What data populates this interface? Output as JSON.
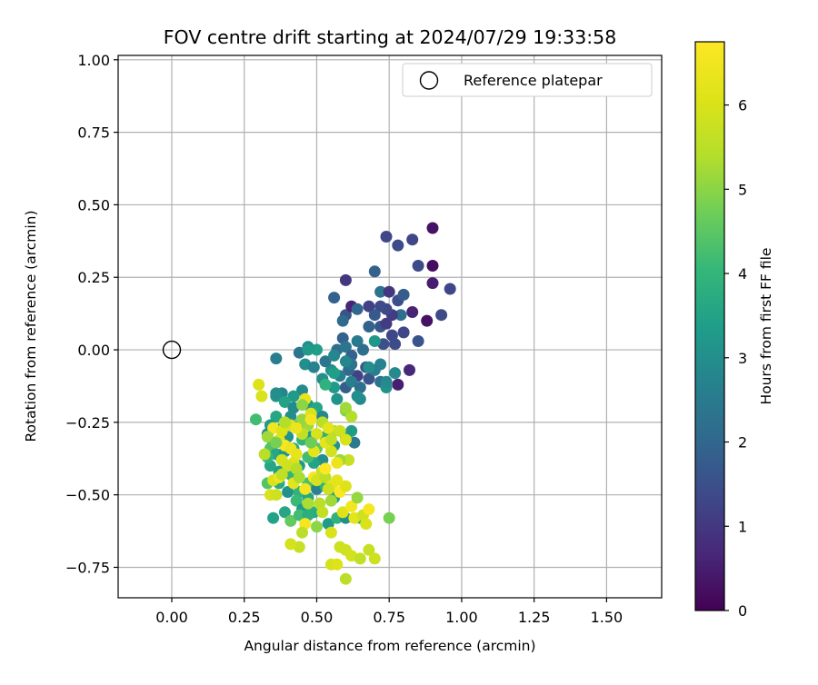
{
  "chart_data": {
    "type": "scatter",
    "title": "FOV centre drift starting at 2024/07/29 19:33:58",
    "xlabel": "Angular distance from reference (arcmin)",
    "ylabel": "Rotation from reference (arcmin)",
    "xlim": [
      -0.185,
      1.69
    ],
    "ylim": [
      -0.855,
      1.015
    ],
    "xticks": [
      "0.00",
      "0.25",
      "0.50",
      "0.75",
      "1.00",
      "1.25",
      "1.50"
    ],
    "yticks": [
      "−0.75",
      "−0.50",
      "−0.25",
      "0.00",
      "0.25",
      "0.50",
      "0.75",
      "1.00"
    ],
    "grid": true,
    "legend": {
      "placement": "top-right",
      "entries": [
        "Reference platepar"
      ]
    },
    "reference_point": {
      "x": 0.0,
      "y": 0.0
    },
    "colorbar": {
      "label": "Hours from first FF file",
      "colormap": "viridis",
      "range": [
        0,
        6.75
      ],
      "ticks": [
        "0",
        "1",
        "2",
        "3",
        "4",
        "5",
        "6"
      ]
    },
    "series": [
      {
        "points": [
          [
            0.9,
            0.42,
            0.3
          ],
          [
            0.9,
            0.29,
            0.2
          ],
          [
            0.9,
            0.23,
            0.5
          ],
          [
            0.96,
            0.21,
            1.3
          ],
          [
            0.88,
            0.1,
            0.3
          ],
          [
            0.93,
            0.12,
            1.4
          ],
          [
            0.85,
            0.29,
            1.4
          ],
          [
            0.83,
            0.38,
            1.3
          ],
          [
            0.74,
            0.39,
            1.3
          ],
          [
            0.78,
            0.36,
            1.4
          ],
          [
            0.83,
            0.13,
            0.6
          ],
          [
            0.82,
            -0.07,
            0.7
          ],
          [
            0.78,
            -0.12,
            0.5
          ],
          [
            0.85,
            0.03,
            1.6
          ],
          [
            0.6,
            0.24,
            1.0
          ],
          [
            0.56,
            0.18,
            1.9
          ],
          [
            0.6,
            0.12,
            1.6
          ],
          [
            0.62,
            0.15,
            0.6
          ],
          [
            0.64,
            0.14,
            2.0
          ],
          [
            0.68,
            0.15,
            1.2
          ],
          [
            0.7,
            0.27,
            1.9
          ],
          [
            0.72,
            0.2,
            2.3
          ],
          [
            0.75,
            0.2,
            1.0
          ],
          [
            0.78,
            0.17,
            1.5
          ],
          [
            0.8,
            0.19,
            1.8
          ],
          [
            0.79,
            0.12,
            2.2
          ],
          [
            0.76,
            0.12,
            1.1
          ],
          [
            0.74,
            0.14,
            1.3
          ],
          [
            0.72,
            0.15,
            1.4
          ],
          [
            0.7,
            0.12,
            1.7
          ],
          [
            0.68,
            0.08,
            1.9
          ],
          [
            0.72,
            0.08,
            1.6
          ],
          [
            0.74,
            0.09,
            1.1
          ],
          [
            0.76,
            0.05,
            1.3
          ],
          [
            0.73,
            0.02,
            1.5
          ],
          [
            0.77,
            0.02,
            1.4
          ],
          [
            0.8,
            0.06,
            1.3
          ],
          [
            0.59,
            0.1,
            2.1
          ],
          [
            0.57,
            0.0,
            2.2
          ],
          [
            0.59,
            0.04,
            1.9
          ],
          [
            0.6,
            0.01,
            2.4
          ],
          [
            0.62,
            -0.02,
            1.9
          ],
          [
            0.64,
            0.03,
            2.5
          ],
          [
            0.66,
            0.0,
            2.2
          ],
          [
            0.67,
            -0.06,
            1.7
          ],
          [
            0.64,
            -0.09,
            1.2
          ],
          [
            0.61,
            -0.07,
            2.1
          ],
          [
            0.58,
            -0.09,
            2.6
          ],
          [
            0.55,
            -0.07,
            3.0
          ],
          [
            0.53,
            -0.04,
            2.4
          ],
          [
            0.56,
            -0.02,
            2.8
          ],
          [
            0.5,
            0.0,
            3.4
          ],
          [
            0.47,
            0.01,
            2.9
          ],
          [
            0.44,
            -0.01,
            2.4
          ],
          [
            0.36,
            -0.03,
            2.6
          ],
          [
            0.46,
            -0.05,
            3.0
          ],
          [
            0.49,
            -0.06,
            2.7
          ],
          [
            0.52,
            -0.1,
            3.0
          ],
          [
            0.6,
            -0.13,
            1.8
          ],
          [
            0.62,
            -0.11,
            2.6
          ],
          [
            0.65,
            -0.13,
            2.2
          ],
          [
            0.65,
            -0.17,
            2.9
          ],
          [
            0.68,
            -0.1,
            1.6
          ],
          [
            0.7,
            -0.07,
            2.6
          ],
          [
            0.72,
            -0.11,
            2.3
          ],
          [
            0.74,
            -0.13,
            3.1
          ],
          [
            0.77,
            -0.08,
            2.9
          ],
          [
            0.62,
            -0.05,
            2.3
          ],
          [
            0.56,
            -0.13,
            3.3
          ],
          [
            0.57,
            -0.17,
            3.1
          ],
          [
            0.53,
            -0.12,
            3.9
          ],
          [
            0.45,
            -0.14,
            2.9
          ],
          [
            0.42,
            -0.16,
            3.3
          ],
          [
            0.38,
            -0.15,
            2.8
          ],
          [
            0.36,
            -0.16,
            3.1
          ],
          [
            0.39,
            -0.18,
            3.5
          ],
          [
            0.42,
            -0.2,
            2.9
          ],
          [
            0.47,
            -0.19,
            3.2
          ],
          [
            0.5,
            -0.2,
            3.6
          ],
          [
            0.52,
            -0.23,
            2.8
          ],
          [
            0.46,
            -0.25,
            3.9
          ],
          [
            0.44,
            -0.26,
            3.5
          ],
          [
            0.41,
            -0.23,
            3.0
          ],
          [
            0.36,
            -0.23,
            3.6
          ],
          [
            0.34,
            -0.26,
            3.3
          ],
          [
            0.29,
            -0.24,
            4.2
          ],
          [
            0.38,
            -0.27,
            3.9
          ],
          [
            0.33,
            -0.29,
            2.9
          ],
          [
            0.35,
            -0.32,
            3.5
          ],
          [
            0.34,
            -0.34,
            4.4
          ],
          [
            0.36,
            -0.36,
            3.6
          ],
          [
            0.39,
            -0.35,
            3.2
          ],
          [
            0.42,
            -0.34,
            3.7
          ],
          [
            0.4,
            -0.3,
            3.1
          ],
          [
            0.45,
            -0.31,
            4.0
          ],
          [
            0.48,
            -0.3,
            3.4
          ],
          [
            0.5,
            -0.34,
            4.5
          ],
          [
            0.53,
            -0.3,
            3.8
          ],
          [
            0.56,
            -0.33,
            3.1
          ],
          [
            0.6,
            -0.3,
            3.7
          ],
          [
            0.62,
            -0.28,
            3.3
          ],
          [
            0.63,
            -0.32,
            2.5
          ],
          [
            0.58,
            -0.38,
            3.8
          ],
          [
            0.52,
            -0.38,
            3.0
          ],
          [
            0.49,
            -0.39,
            3.5
          ],
          [
            0.47,
            -0.37,
            4.2
          ],
          [
            0.44,
            -0.4,
            3.3
          ],
          [
            0.41,
            -0.43,
            4.0
          ],
          [
            0.37,
            -0.42,
            3.4
          ],
          [
            0.34,
            -0.4,
            3.6
          ],
          [
            0.33,
            -0.37,
            4.0
          ],
          [
            0.33,
            -0.46,
            4.4
          ],
          [
            0.37,
            -0.46,
            3.7
          ],
          [
            0.4,
            -0.49,
            3.1
          ],
          [
            0.44,
            -0.49,
            3.9
          ],
          [
            0.47,
            -0.46,
            4.3
          ],
          [
            0.5,
            -0.48,
            2.7
          ],
          [
            0.53,
            -0.47,
            3.8
          ],
          [
            0.56,
            -0.51,
            3.3
          ],
          [
            0.47,
            -0.51,
            3.6
          ],
          [
            0.43,
            -0.52,
            4.1
          ],
          [
            0.45,
            -0.55,
            3.3
          ],
          [
            0.49,
            -0.56,
            3.7
          ],
          [
            0.51,
            -0.53,
            4.6
          ],
          [
            0.39,
            -0.56,
            3.6
          ],
          [
            0.35,
            -0.58,
            3.5
          ],
          [
            0.41,
            -0.59,
            4.6
          ],
          [
            0.44,
            -0.57,
            4.2
          ],
          [
            0.47,
            -0.57,
            3.8
          ],
          [
            0.54,
            -0.6,
            3.3
          ],
          [
            0.57,
            -0.58,
            3.9
          ],
          [
            0.65,
            -0.58,
            3.8
          ],
          [
            0.6,
            -0.58,
            3.0
          ],
          [
            0.68,
            -0.06,
            3.0
          ],
          [
            0.72,
            -0.05,
            2.7
          ],
          [
            0.6,
            -0.04,
            2.8
          ],
          [
            0.7,
            0.03,
            3.2
          ],
          [
            0.64,
            -0.16,
            3.0
          ],
          [
            0.47,
            0.0,
            3.3
          ],
          [
            0.36,
            -0.15,
            3.0
          ],
          [
            0.56,
            -0.08,
            3.4
          ],
          [
            0.74,
            -0.11,
            2.9
          ],
          [
            0.3,
            -0.12,
            6.1
          ],
          [
            0.31,
            -0.16,
            6.0
          ],
          [
            0.35,
            -0.27,
            6.5
          ],
          [
            0.37,
            -0.31,
            6.2
          ],
          [
            0.39,
            -0.33,
            6.6
          ],
          [
            0.41,
            -0.34,
            6.4
          ],
          [
            0.43,
            -0.36,
            6.3
          ],
          [
            0.42,
            -0.39,
            6.1
          ],
          [
            0.35,
            -0.45,
            6.0
          ],
          [
            0.37,
            -0.44,
            6.4
          ],
          [
            0.42,
            -0.46,
            6.2
          ],
          [
            0.46,
            -0.48,
            6.5
          ],
          [
            0.49,
            -0.44,
            6.6
          ],
          [
            0.5,
            -0.45,
            5.9
          ],
          [
            0.52,
            -0.42,
            5.8
          ],
          [
            0.53,
            -0.44,
            5.5
          ],
          [
            0.55,
            -0.47,
            6.3
          ],
          [
            0.58,
            -0.49,
            6.7
          ],
          [
            0.6,
            -0.47,
            6.1
          ],
          [
            0.61,
            -0.38,
            5.7
          ],
          [
            0.58,
            -0.38,
            5.2
          ],
          [
            0.55,
            -0.35,
            5.9
          ],
          [
            0.53,
            -0.32,
            6.3
          ],
          [
            0.56,
            -0.28,
            5.4
          ],
          [
            0.58,
            -0.28,
            5.8
          ],
          [
            0.47,
            -0.26,
            5.2
          ],
          [
            0.45,
            -0.29,
            5.6
          ],
          [
            0.41,
            -0.26,
            6.0
          ],
          [
            0.38,
            -0.28,
            6.1
          ],
          [
            0.45,
            -0.24,
            5.1
          ],
          [
            0.48,
            -0.22,
            6.0
          ],
          [
            0.46,
            -0.17,
            6.3
          ],
          [
            0.43,
            -0.27,
            6.4
          ],
          [
            0.38,
            -0.38,
            5.9
          ],
          [
            0.4,
            -0.4,
            5.8
          ],
          [
            0.43,
            -0.41,
            5.4
          ],
          [
            0.49,
            -0.35,
            6.2
          ],
          [
            0.5,
            -0.29,
            6.0
          ],
          [
            0.55,
            -0.31,
            5.6
          ],
          [
            0.6,
            -0.31,
            6.0
          ],
          [
            0.57,
            -0.39,
            6.4
          ],
          [
            0.57,
            -0.45,
            6.2
          ],
          [
            0.54,
            -0.48,
            5.8
          ],
          [
            0.51,
            -0.53,
            5.5
          ],
          [
            0.52,
            -0.56,
            5.6
          ],
          [
            0.55,
            -0.52,
            5.2
          ],
          [
            0.59,
            -0.56,
            6.1
          ],
          [
            0.62,
            -0.54,
            6.5
          ],
          [
            0.63,
            -0.58,
            6.2
          ],
          [
            0.66,
            -0.57,
            5.8
          ],
          [
            0.68,
            -0.55,
            6.6
          ],
          [
            0.67,
            -0.6,
            6.0
          ],
          [
            0.64,
            -0.51,
            5.1
          ],
          [
            0.46,
            -0.6,
            6.6
          ],
          [
            0.44,
            -0.68,
            5.7
          ],
          [
            0.41,
            -0.67,
            5.9
          ],
          [
            0.45,
            -0.63,
            5.5
          ],
          [
            0.5,
            -0.61,
            5.0
          ],
          [
            0.55,
            -0.63,
            6.0
          ],
          [
            0.58,
            -0.68,
            5.8
          ],
          [
            0.6,
            -0.69,
            5.8
          ],
          [
            0.62,
            -0.71,
            5.9
          ],
          [
            0.65,
            -0.72,
            5.6
          ],
          [
            0.68,
            -0.69,
            5.7
          ],
          [
            0.7,
            -0.72,
            5.8
          ],
          [
            0.75,
            -0.58,
            4.8
          ],
          [
            0.55,
            -0.74,
            5.9
          ],
          [
            0.57,
            -0.74,
            6.1
          ],
          [
            0.6,
            -0.79,
            5.5
          ],
          [
            0.34,
            -0.5,
            6.0
          ],
          [
            0.36,
            -0.5,
            5.8
          ],
          [
            0.32,
            -0.36,
            5.5
          ],
          [
            0.33,
            -0.3,
            5.2
          ],
          [
            0.36,
            -0.32,
            4.8
          ],
          [
            0.38,
            -0.43,
            5.6
          ],
          [
            0.44,
            -0.44,
            5.3
          ],
          [
            0.48,
            -0.32,
            4.7
          ],
          [
            0.52,
            -0.25,
            5.5
          ],
          [
            0.54,
            -0.27,
            6.2
          ],
          [
            0.45,
            -0.19,
            5.0
          ],
          [
            0.48,
            -0.24,
            6.5
          ],
          [
            0.39,
            -0.25,
            5.4
          ],
          [
            0.53,
            -0.41,
            6.7
          ],
          [
            0.47,
            -0.53,
            5.3
          ],
          [
            0.6,
            -0.21,
            4.9
          ],
          [
            0.62,
            -0.23,
            5.4
          ],
          [
            0.6,
            -0.2,
            5.2
          ]
        ]
      }
    ]
  }
}
